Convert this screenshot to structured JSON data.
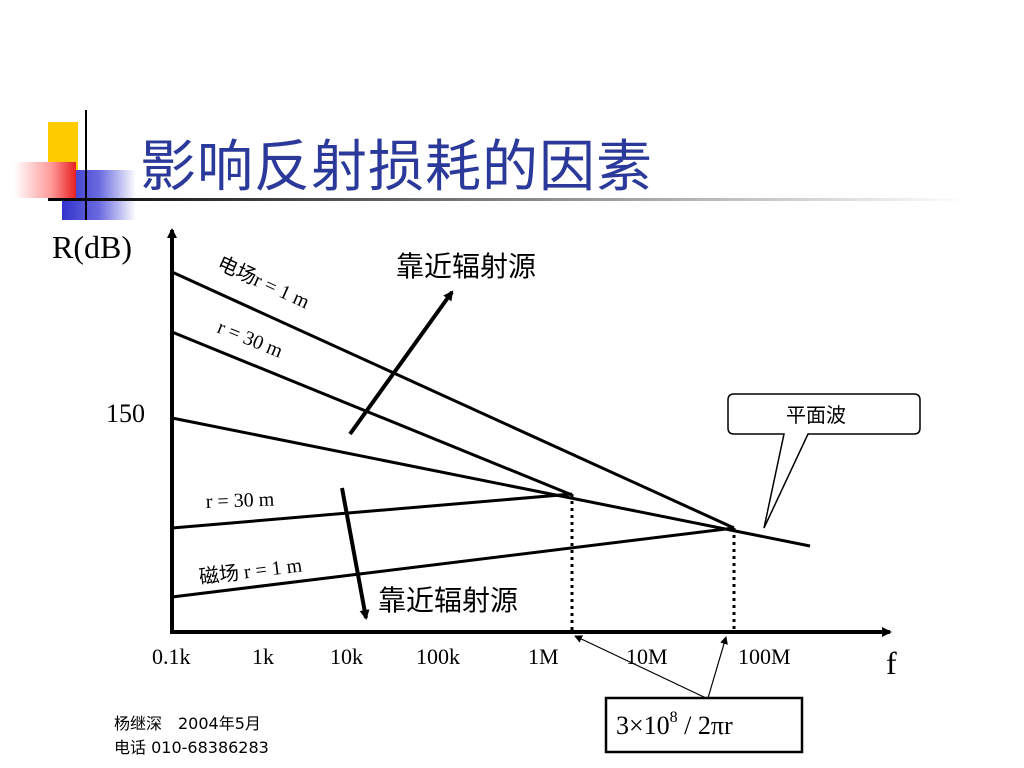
{
  "slide": {
    "title": "影响反射损耗的因素",
    "footer": {
      "author_line": "杨继深　2004年5月",
      "phone_line": "电话 010-68386283"
    }
  },
  "diagram": {
    "y_axis_label": "R(dB)",
    "x_axis_label": "f",
    "y_tick_label": "150",
    "x_tick_labels": [
      "0.1k",
      "1k",
      "10k",
      "100k",
      "1M",
      "10M",
      "100M"
    ],
    "line_labels": {
      "electric_1m": "电场r = 1 m",
      "electric_30m": "r = 30 m",
      "magnetic_30m": "r = 30 m",
      "magnetic_1m": "磁场 r = 1 m"
    },
    "arrow_labels": {
      "up": "靠近辐射源",
      "down": "靠近辐射源"
    },
    "callout": "平面波",
    "formula": {
      "coef": "3×",
      "base": "10",
      "exp": "8",
      "rest": " /  2πr"
    }
  }
}
